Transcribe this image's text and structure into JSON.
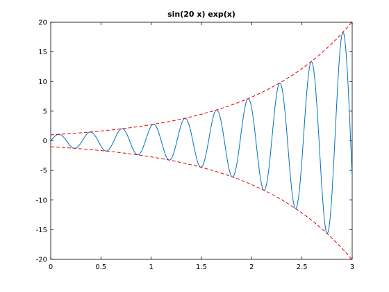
{
  "chart_data": {
    "type": "line",
    "title": "sin(20 x) exp(x)",
    "xlabel": "",
    "ylabel": "",
    "xlim": [
      0,
      3
    ],
    "ylim": [
      -20,
      20
    ],
    "grid": false,
    "legend": "none",
    "x_ticks": [
      0,
      0.5,
      1,
      1.5,
      2,
      2.5,
      3
    ],
    "x_tick_labels": [
      "0",
      "0.5",
      "1",
      "1.5",
      "2",
      "2.5",
      "3"
    ],
    "y_ticks": [
      -20,
      -15,
      -10,
      -5,
      0,
      5,
      10,
      15,
      20
    ],
    "y_tick_labels": [
      "-20",
      "-15",
      "-10",
      "-5",
      "0",
      "5",
      "10",
      "15",
      "20"
    ],
    "sample_step": 0.005,
    "series": [
      {
        "expression": "sin(20 x) exp(x)",
        "color": "#0072bd",
        "style": "solid"
      },
      {
        "expression": "exp(x)",
        "color": "#e00000",
        "style": "dashed"
      },
      {
        "expression": "-exp(x)",
        "color": "#e00000",
        "style": "dashed"
      }
    ]
  }
}
